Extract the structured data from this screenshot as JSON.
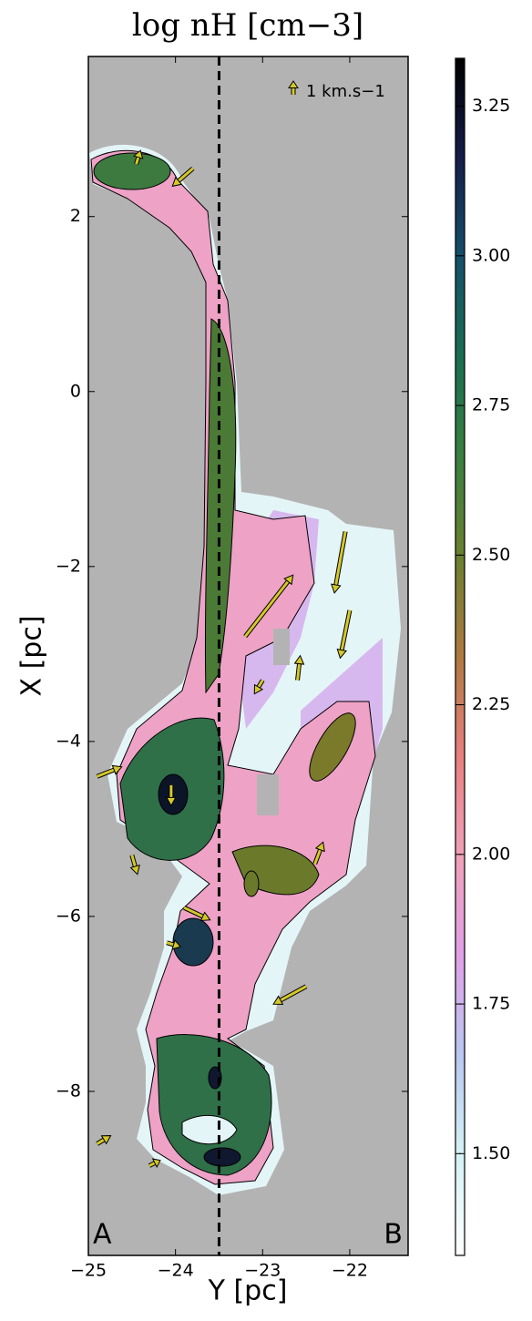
{
  "chart_data": {
    "type": "density_map",
    "title": "log nH  [cm−3]",
    "x_label": "Y [pc]",
    "y_label": "X [pc]",
    "corner_labels": [
      "A",
      "B"
    ],
    "xlim": [
      -25,
      -21.33
    ],
    "ylim": [
      -9.875,
      3.83
    ],
    "xticks": [
      {
        "value": -25,
        "label": "−25"
      },
      {
        "value": -24,
        "label": "−24"
      },
      {
        "value": -23,
        "label": "−23"
      },
      {
        "value": -22,
        "label": "−22"
      }
    ],
    "yticks": [
      2,
      0,
      {
        "value": -2,
        "label": "−2"
      },
      {
        "value": -4,
        "label": "−4"
      },
      {
        "value": -6,
        "label": "−6"
      },
      {
        "value": -8,
        "label": "−8"
      }
    ],
    "clim": [
      1.33,
      3.33
    ],
    "cticks": [
      3.25,
      {
        "value": 3.0,
        "label": "3.00"
      },
      2.75,
      {
        "value": 2.5,
        "label": "2.50"
      },
      2.25,
      {
        "value": 2.0,
        "label": "2.00"
      },
      1.75,
      {
        "value": 1.5,
        "label": "1.50"
      }
    ],
    "colormap": [
      "#ffffff",
      "#d5f2f4",
      "#b8c8f0",
      "#e0a0e8",
      "#f0a0b8",
      "#e88080",
      "#b07a40",
      "#6a8030",
      "#3a8040",
      "#1a6e50",
      "#15506a",
      "#151e4a",
      "#000000"
    ],
    "background_color": "#b3b3b3",
    "cut_line": {
      "x": -23.5,
      "style": "dashed",
      "color": "#000000"
    },
    "vector_color": "#d4c82a",
    "vector_key": {
      "value": 1,
      "label": "1 km.s−1"
    },
    "vectors": {
      "x": [
        -23.8,
        -24.45,
        -23.2,
        -22.05,
        -22.0,
        -22.6,
        -23.0,
        -24.9,
        -24.05,
        -24.5,
        -23.9,
        -24.1,
        -22.5,
        -24.9,
        -24.3,
        -22.4
      ],
      "y": [
        2.55,
        2.6,
        -2.8,
        -1.6,
        -2.5,
        -3.3,
        -3.3,
        -4.4,
        -4.5,
        -5.3,
        -5.9,
        -6.3,
        -6.8,
        -8.6,
        -8.85,
        -5.4
      ],
      "u": [
        -1.5,
        0.3,
        3.5,
        -0.8,
        -0.7,
        0.2,
        -0.6,
        1.8,
        0.0,
        0.4,
        1.9,
        1.0,
        -2.4,
        1.0,
        0.8,
        0.6
      ],
      "v": [
        -1.3,
        1.0,
        4.5,
        -4.5,
        -3.5,
        1.8,
        -1.0,
        0.7,
        -1.5,
        -1.4,
        -0.9,
        -0.3,
        -1.3,
        0.6,
        0.4,
        1.6
      ]
    }
  }
}
